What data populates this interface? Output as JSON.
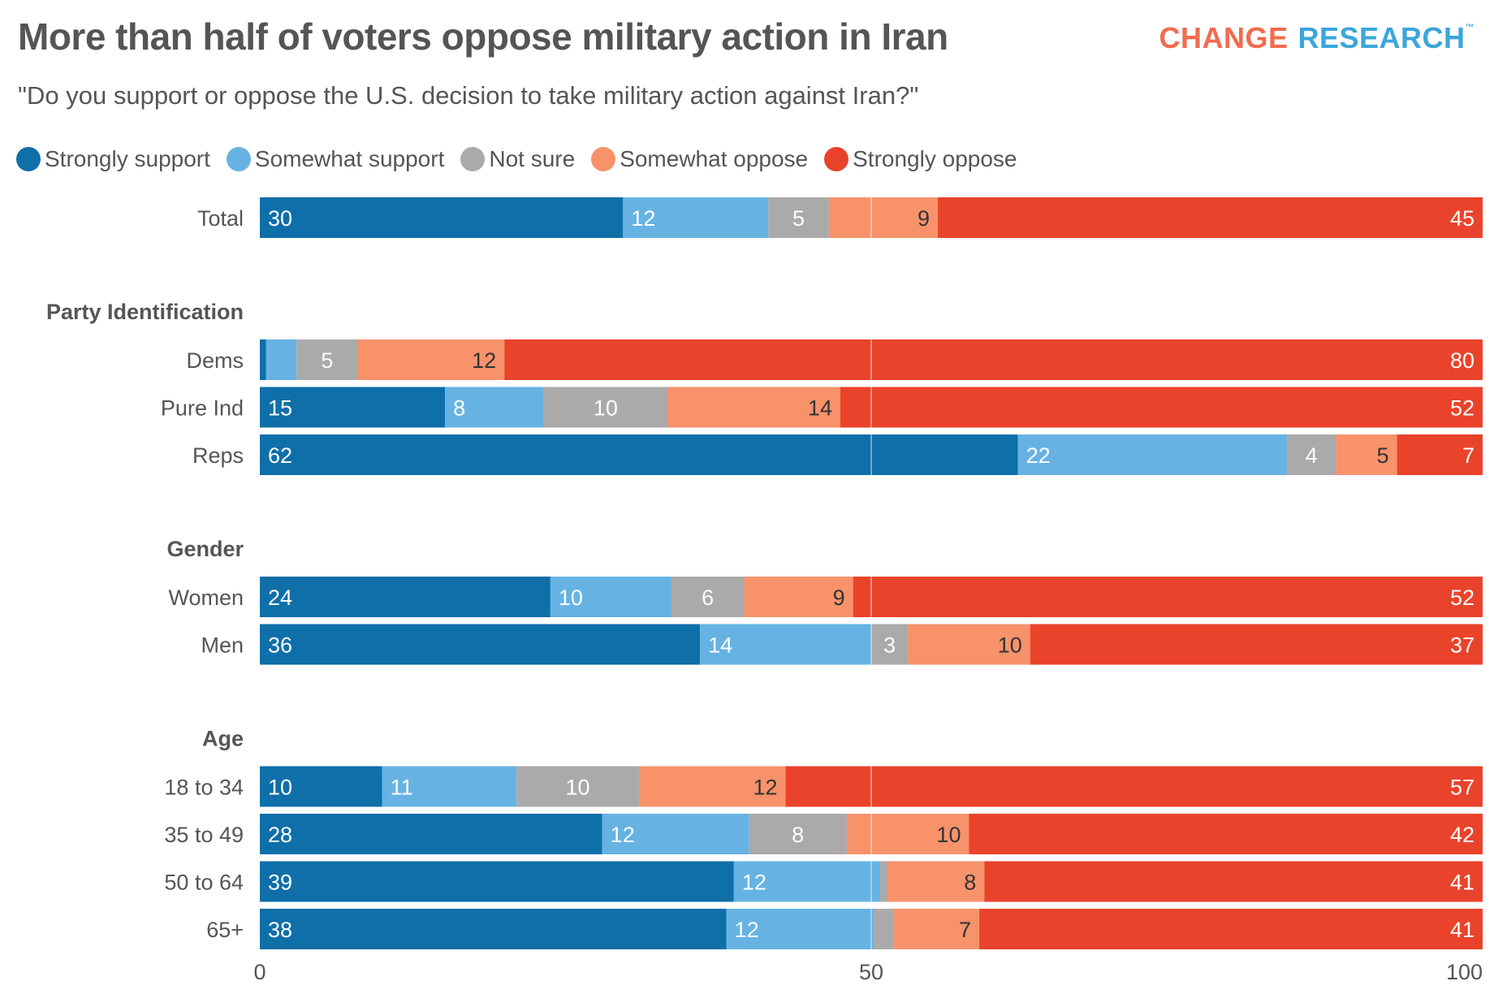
{
  "header": {
    "title": "More than half of voters oppose military action in Iran",
    "subtitle": "\"Do you support or oppose the U.S. decision to take military action against Iran?\"",
    "logo_part1": "CHANGE",
    "logo_part2": "RESEARCH",
    "logo_tm": "™"
  },
  "colors": {
    "strongly_support": "#0f6fa8",
    "somewhat_support": "#66b3e3",
    "not_sure": "#aaaaaa",
    "somewhat_oppose": "#f7926b",
    "strongly_oppose": "#e9432b",
    "logo_change": "#f26c4f",
    "logo_research": "#3ba6db",
    "text": "#555555"
  },
  "chart_data": {
    "type": "bar",
    "orientation": "horizontal",
    "stacked": true,
    "title": "More than half of voters oppose military action in Iran",
    "subtitle": "\"Do you support or oppose the U.S. decision to take military action against Iran?\"",
    "xlabel": "",
    "ylabel": "",
    "xlim": [
      0,
      100
    ],
    "x_ticks": [
      "0",
      "50",
      "100"
    ],
    "reference_line": 50,
    "legend_position": "top-left",
    "series_names": [
      "Strongly support",
      "Somewhat support",
      "Not sure",
      "Somewhat oppose",
      "Strongly oppose"
    ],
    "series_keys": [
      "strongly_support",
      "somewhat_support",
      "not_sure",
      "somewhat_oppose",
      "strongly_oppose"
    ],
    "groups": [
      {
        "heading": "",
        "rows": [
          {
            "label": "Total",
            "values": [
              30,
              12,
              5,
              9,
              45
            ],
            "labels": [
              "30",
              "12",
              "5",
              "9",
              "45"
            ]
          }
        ]
      },
      {
        "heading": "Party Identification",
        "rows": [
          {
            "label": "Dems",
            "values": [
              0.5,
              2.5,
              5,
              12,
              80
            ],
            "labels": [
              "",
              "",
              "5",
              "12",
              "80"
            ]
          },
          {
            "label": "Pure Ind",
            "values": [
              15,
              8,
              10,
              14,
              52
            ],
            "labels": [
              "15",
              "8",
              "10",
              "14",
              "52"
            ]
          },
          {
            "label": "Reps",
            "values": [
              62,
              22,
              4,
              5,
              7
            ],
            "labels": [
              "62",
              "22",
              "4",
              "5",
              "7"
            ]
          }
        ]
      },
      {
        "heading": "Gender",
        "rows": [
          {
            "label": "Women",
            "values": [
              24,
              10,
              6,
              9,
              52
            ],
            "labels": [
              "24",
              "10",
              "6",
              "9",
              "52"
            ]
          },
          {
            "label": "Men",
            "values": [
              36,
              14,
              3,
              10,
              37
            ],
            "labels": [
              "36",
              "14",
              "3",
              "10",
              "37"
            ]
          }
        ]
      },
      {
        "heading": "Age",
        "rows": [
          {
            "label": "18 to 34",
            "values": [
              10,
              11,
              10,
              12,
              57
            ],
            "labels": [
              "10",
              "11",
              "10",
              "12",
              "57"
            ]
          },
          {
            "label": "35 to 49",
            "values": [
              28,
              12,
              8,
              10,
              42
            ],
            "labels": [
              "28",
              "12",
              "8",
              "10",
              "42"
            ]
          },
          {
            "label": "50 to 64",
            "values": [
              39,
              12,
              0.6,
              8,
              41
            ],
            "labels": [
              "39",
              "12",
              "",
              "8",
              "41"
            ]
          },
          {
            "label": "65+",
            "values": [
              38,
              12,
              1.6,
              7,
              41
            ],
            "labels": [
              "38",
              "12",
              "",
              "7",
              "41"
            ]
          }
        ]
      }
    ]
  }
}
